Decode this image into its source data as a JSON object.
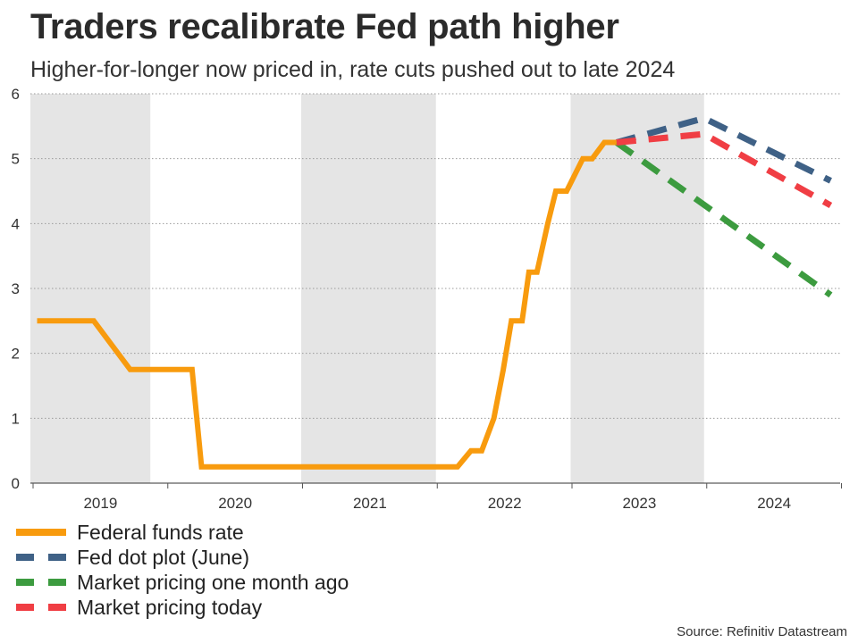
{
  "title": "Traders recalibrate Fed path higher",
  "subtitle": "Higher-for-longer now priced in, rate cuts pushed out to late 2024",
  "source": "Source: Refinitiv Datastream",
  "chart_data": {
    "type": "line",
    "ylim": [
      0,
      6
    ],
    "yticks": [
      0,
      1,
      2,
      3,
      4,
      5,
      6
    ],
    "xlim": [
      2018.98,
      2024.99
    ],
    "year_labels": [
      "2019",
      "2020",
      "2021",
      "2022",
      "2023",
      "2024"
    ],
    "grid": "horizontal-dotted",
    "shaded_bands": [
      [
        2018.98,
        2019.87
      ],
      [
        2020.99,
        2021.99
      ],
      [
        2022.99,
        2023.98
      ],
      [
        2024.99,
        2025.08
      ]
    ],
    "legend": "bottom-left",
    "series": [
      {
        "name": "Federal funds rate",
        "color": "#F89B0E",
        "dash": "solid",
        "points": [
          [
            2019.03,
            2.5
          ],
          [
            2019.45,
            2.5
          ],
          [
            2019.72,
            1.75
          ],
          [
            2020.18,
            1.75
          ],
          [
            2020.25,
            0.25
          ],
          [
            2022.15,
            0.25
          ],
          [
            2022.25,
            0.5
          ],
          [
            2022.33,
            0.5
          ],
          [
            2022.42,
            1.0
          ],
          [
            2022.49,
            1.75
          ],
          [
            2022.55,
            2.5
          ],
          [
            2022.63,
            2.5
          ],
          [
            2022.68,
            3.25
          ],
          [
            2022.74,
            3.25
          ],
          [
            2022.82,
            4.0
          ],
          [
            2022.88,
            4.5
          ],
          [
            2022.96,
            4.5
          ],
          [
            2023.08,
            5.0
          ],
          [
            2023.15,
            5.0
          ],
          [
            2023.24,
            5.25
          ],
          [
            2023.33,
            5.25
          ]
        ]
      },
      {
        "name": "Fed dot plot (June)",
        "color": "#3F6186",
        "dash": "dashed",
        "points": [
          [
            2023.33,
            5.25
          ],
          [
            2023.98,
            5.625
          ],
          [
            2024.92,
            4.66
          ]
        ]
      },
      {
        "name": "Market pricing one month ago",
        "color": "#3C9B3F",
        "dash": "dashed",
        "points": [
          [
            2023.33,
            5.25
          ],
          [
            2024.92,
            2.9
          ]
        ]
      },
      {
        "name": "Market pricing today",
        "color": "#F03E44",
        "dash": "dashed",
        "points": [
          [
            2023.33,
            5.25
          ],
          [
            2023.98,
            5.38
          ],
          [
            2024.92,
            4.28
          ]
        ]
      }
    ]
  }
}
